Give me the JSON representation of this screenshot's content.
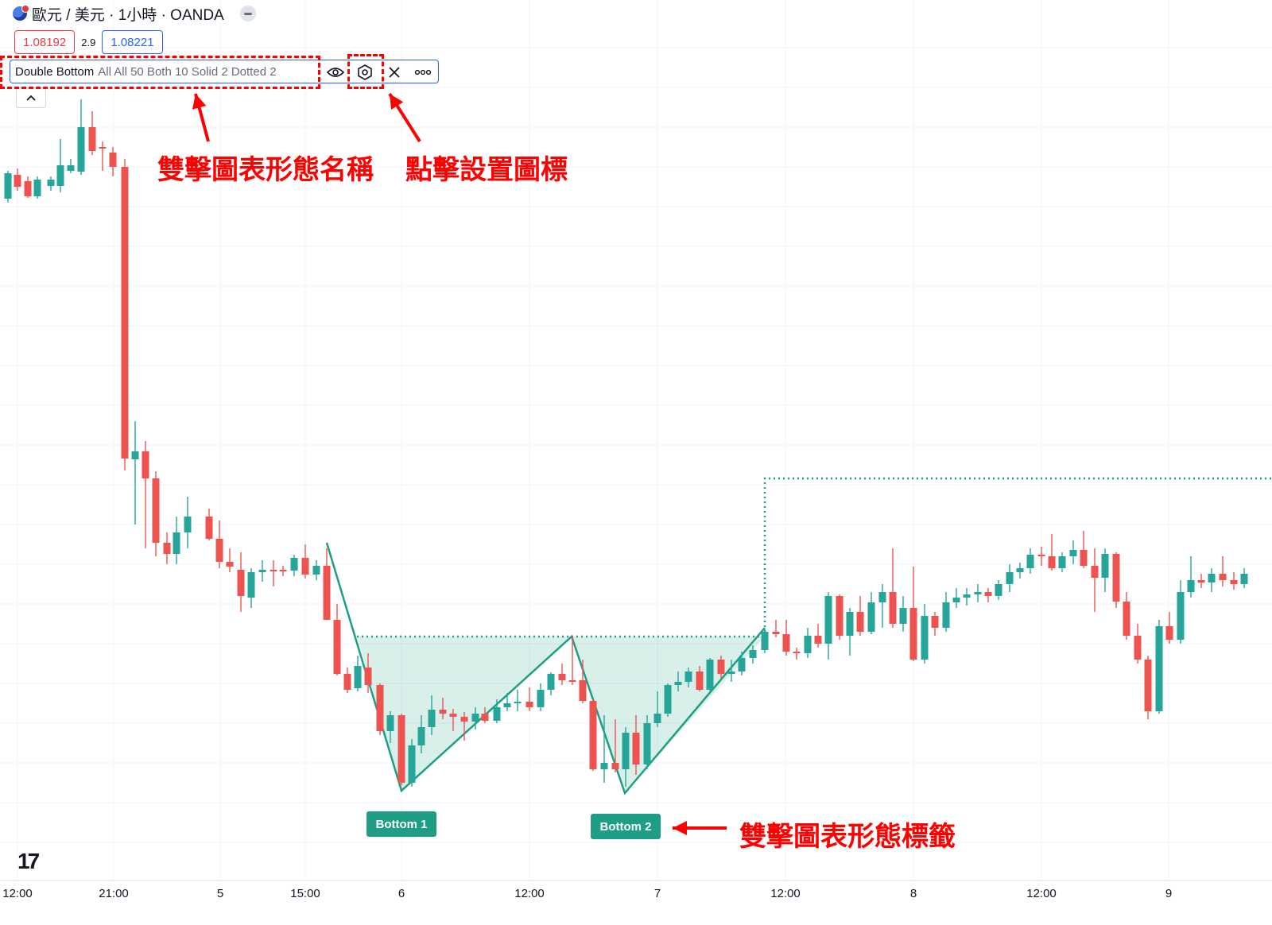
{
  "header": {
    "symbol": "歐元 / 美元 · 1小時 · OANDA",
    "sell_price": "1.08192",
    "spread": "2.9",
    "buy_price": "1.08221"
  },
  "indicator": {
    "name": "Double Bottom",
    "params": "All All 50 Both 10 Solid 2 Dotted 2"
  },
  "annotations": {
    "pattern_name": "雙擊圖表形態名稱",
    "settings_icon": "點擊設置圖標",
    "pattern_labels": "雙擊圖表形態標籤"
  },
  "pattern_labels": [
    "Bottom 1",
    "Bottom 2"
  ],
  "time_axis": [
    "12:00",
    "21:00",
    "5",
    "15:00",
    "6",
    "12:00",
    "7",
    "12:00",
    "8",
    "12:00",
    "9"
  ],
  "colors": {
    "up": "#26a69a",
    "down": "#ef5350",
    "pattern": "#1e9e84",
    "annotation": "#ff0000",
    "accent": "#2962ff"
  },
  "icons": [
    "eye-icon",
    "settings-icon",
    "close-icon",
    "more-icon",
    "chevron-up-icon",
    "tradingview-logo-icon"
  ]
}
